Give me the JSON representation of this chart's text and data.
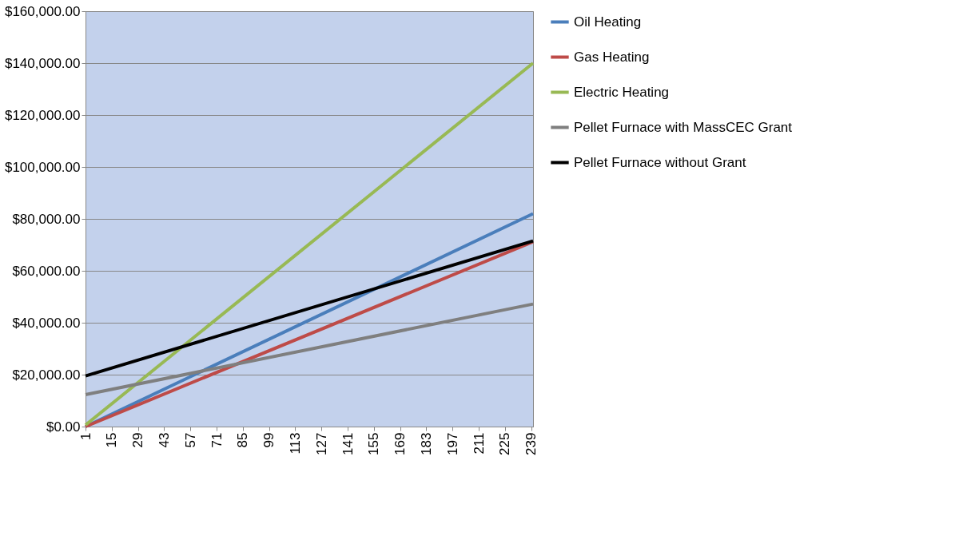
{
  "chart_data": {
    "type": "line",
    "x": [
      1,
      240
    ],
    "xlim": [
      1,
      240
    ],
    "xticks": [
      1,
      15,
      29,
      43,
      57,
      71,
      85,
      99,
      113,
      127,
      141,
      155,
      169,
      183,
      197,
      211,
      225,
      239
    ],
    "ylim": [
      0,
      160000
    ],
    "yticks": [
      {
        "value": 0,
        "label": "$0.00"
      },
      {
        "value": 20000,
        "label": "$20,000.00"
      },
      {
        "value": 40000,
        "label": "$40,000.00"
      },
      {
        "value": 60000,
        "label": "$60,000.00"
      },
      {
        "value": 80000,
        "label": "$80,000.00"
      },
      {
        "value": 100000,
        "label": "$100,000.00"
      },
      {
        "value": 120000,
        "label": "$120,000.00"
      },
      {
        "value": 140000,
        "label": "$140,000.00"
      },
      {
        "value": 160000,
        "label": "$160,000.00"
      }
    ],
    "series": [
      {
        "name": "Oil Heating",
        "color": "#4a7ebb",
        "values": [
          0,
          82000
        ]
      },
      {
        "name": "Gas Heating",
        "color": "#be4b48",
        "values": [
          0,
          71200
        ]
      },
      {
        "name": "Electric Heating",
        "color": "#98b954",
        "values": [
          600,
          140000
        ]
      },
      {
        "name": "Pellet Furnace with MassCEC Grant",
        "color": "#7f7f7f",
        "values": [
          12300,
          47200
        ]
      },
      {
        "name": "Pellet Furnace without Grant",
        "color": "#000000",
        "values": [
          19500,
          71500
        ]
      }
    ],
    "grid": "y",
    "legend": "right",
    "marker": "none",
    "line_style": "solid"
  }
}
